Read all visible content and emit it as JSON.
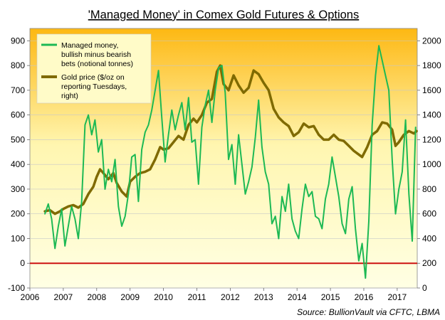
{
  "chart_data": {
    "type": "line",
    "title": "'Managed Money' in Comex Gold Futures & Options",
    "source": "Source:  BullionVault via CFTC, LBMA",
    "x_ticks": [
      "2006",
      "2007",
      "2008",
      "2009",
      "2010",
      "2011",
      "2012",
      "2013",
      "2014",
      "2015",
      "2016",
      "2017"
    ],
    "xlim": [
      2006.0,
      2017.6
    ],
    "y_left_ticks": [
      "-100",
      "0",
      "100",
      "200",
      "300",
      "400",
      "500",
      "600",
      "700",
      "800",
      "900"
    ],
    "ylim_left": [
      -100,
      950
    ],
    "y_right_ticks": [
      "0",
      "200",
      "400",
      "600",
      "800",
      "1000",
      "1200",
      "1400",
      "1600",
      "1800",
      "2000"
    ],
    "ylim_right": [
      0,
      2100
    ],
    "zero_line": 0,
    "background_gradient": [
      "#fdb813",
      "#fff6b0",
      "#ffffe4"
    ],
    "legend": {
      "position": "top-left",
      "entries": [
        [
          "Managed money,",
          "bullish minus bearish",
          "bets (notional tonnes)"
        ],
        [
          "Gold price ($/oz on",
          "reporting Tuesdays,",
          "right)"
        ]
      ]
    },
    "series": [
      {
        "name": "Managed money, bullish minus bearish bets (notional tonnes)",
        "axis": "left",
        "color": "#1db954",
        "x": [
          2006.45,
          2006.55,
          2006.65,
          2006.75,
          2006.85,
          2006.95,
          2007.05,
          2007.15,
          2007.25,
          2007.35,
          2007.45,
          2007.55,
          2007.65,
          2007.75,
          2007.85,
          2007.95,
          2008.05,
          2008.15,
          2008.25,
          2008.35,
          2008.45,
          2008.55,
          2008.65,
          2008.75,
          2008.85,
          2008.95,
          2009.05,
          2009.15,
          2009.25,
          2009.35,
          2009.45,
          2009.55,
          2009.65,
          2009.75,
          2009.85,
          2009.95,
          2010.05,
          2010.15,
          2010.25,
          2010.35,
          2010.45,
          2010.55,
          2010.65,
          2010.75,
          2010.85,
          2010.95,
          2011.05,
          2011.15,
          2011.25,
          2011.35,
          2011.45,
          2011.55,
          2011.65,
          2011.75,
          2011.85,
          2011.95,
          2012.05,
          2012.15,
          2012.25,
          2012.35,
          2012.45,
          2012.55,
          2012.65,
          2012.75,
          2012.85,
          2012.95,
          2013.05,
          2013.15,
          2013.25,
          2013.35,
          2013.45,
          2013.55,
          2013.65,
          2013.75,
          2013.85,
          2013.95,
          2014.05,
          2014.15,
          2014.25,
          2014.35,
          2014.45,
          2014.55,
          2014.65,
          2014.75,
          2014.85,
          2014.95,
          2015.05,
          2015.15,
          2015.25,
          2015.35,
          2015.45,
          2015.55,
          2015.65,
          2015.75,
          2015.85,
          2015.95,
          2016.05,
          2016.15,
          2016.25,
          2016.35,
          2016.45,
          2016.55,
          2016.65,
          2016.75,
          2016.85,
          2016.95,
          2017.05,
          2017.15,
          2017.25,
          2017.35,
          2017.45,
          2017.55
        ],
        "values": [
          200,
          240,
          180,
          60,
          150,
          220,
          70,
          150,
          230,
          180,
          100,
          250,
          560,
          600,
          520,
          580,
          450,
          500,
          300,
          380,
          330,
          420,
          230,
          150,
          190,
          280,
          430,
          440,
          250,
          460,
          530,
          560,
          620,
          700,
          780,
          590,
          410,
          520,
          620,
          540,
          600,
          650,
          540,
          670,
          490,
          500,
          320,
          550,
          640,
          700,
          570,
          700,
          790,
          800,
          690,
          420,
          480,
          320,
          520,
          400,
          280,
          330,
          390,
          510,
          660,
          470,
          370,
          320,
          160,
          190,
          100,
          270,
          210,
          320,
          180,
          130,
          100,
          220,
          320,
          270,
          290,
          190,
          180,
          140,
          260,
          320,
          430,
          350,
          270,
          160,
          120,
          260,
          310,
          140,
          10,
          80,
          -60,
          170,
          560,
          760,
          880,
          820,
          760,
          700,
          420,
          200,
          300,
          370,
          580,
          280,
          90,
          550
        ]
      },
      {
        "name": "Gold price ($/oz on reporting Tuesdays, right)",
        "axis": "right",
        "color": "#7f6a00",
        "x": [
          2006.45,
          2006.6,
          2006.75,
          2006.9,
          2007.0,
          2007.15,
          2007.3,
          2007.45,
          2007.6,
          2007.75,
          2007.9,
          2008.0,
          2008.1,
          2008.2,
          2008.35,
          2008.5,
          2008.6,
          2008.75,
          2008.9,
          2009.0,
          2009.15,
          2009.3,
          2009.45,
          2009.6,
          2009.75,
          2009.9,
          2010.0,
          2010.15,
          2010.3,
          2010.45,
          2010.6,
          2010.75,
          2010.9,
          2011.0,
          2011.15,
          2011.3,
          2011.45,
          2011.6,
          2011.7,
          2011.8,
          2011.95,
          2012.1,
          2012.25,
          2012.4,
          2012.55,
          2012.7,
          2012.85,
          2013.0,
          2013.15,
          2013.3,
          2013.45,
          2013.6,
          2013.75,
          2013.9,
          2014.05,
          2014.2,
          2014.35,
          2014.5,
          2014.65,
          2014.8,
          2014.95,
          2015.1,
          2015.25,
          2015.4,
          2015.55,
          2015.7,
          2015.85,
          2015.95,
          2016.1,
          2016.25,
          2016.4,
          2016.55,
          2016.7,
          2016.85,
          2016.95,
          2017.05,
          2017.2,
          2017.35,
          2017.5,
          2017.58
        ],
        "values": [
          620,
          630,
          600,
          620,
          640,
          660,
          670,
          650,
          680,
          760,
          820,
          900,
          960,
          930,
          880,
          930,
          850,
          780,
          740,
          860,
          900,
          930,
          940,
          960,
          1040,
          1140,
          1120,
          1130,
          1180,
          1230,
          1200,
          1320,
          1370,
          1340,
          1400,
          1500,
          1530,
          1750,
          1800,
          1650,
          1600,
          1720,
          1640,
          1580,
          1620,
          1760,
          1730,
          1660,
          1600,
          1450,
          1380,
          1340,
          1310,
          1230,
          1260,
          1330,
          1300,
          1310,
          1240,
          1200,
          1200,
          1240,
          1200,
          1190,
          1150,
          1110,
          1080,
          1060,
          1140,
          1240,
          1270,
          1340,
          1330,
          1280,
          1150,
          1180,
          1240,
          1270,
          1250,
          1270
        ]
      }
    ]
  }
}
